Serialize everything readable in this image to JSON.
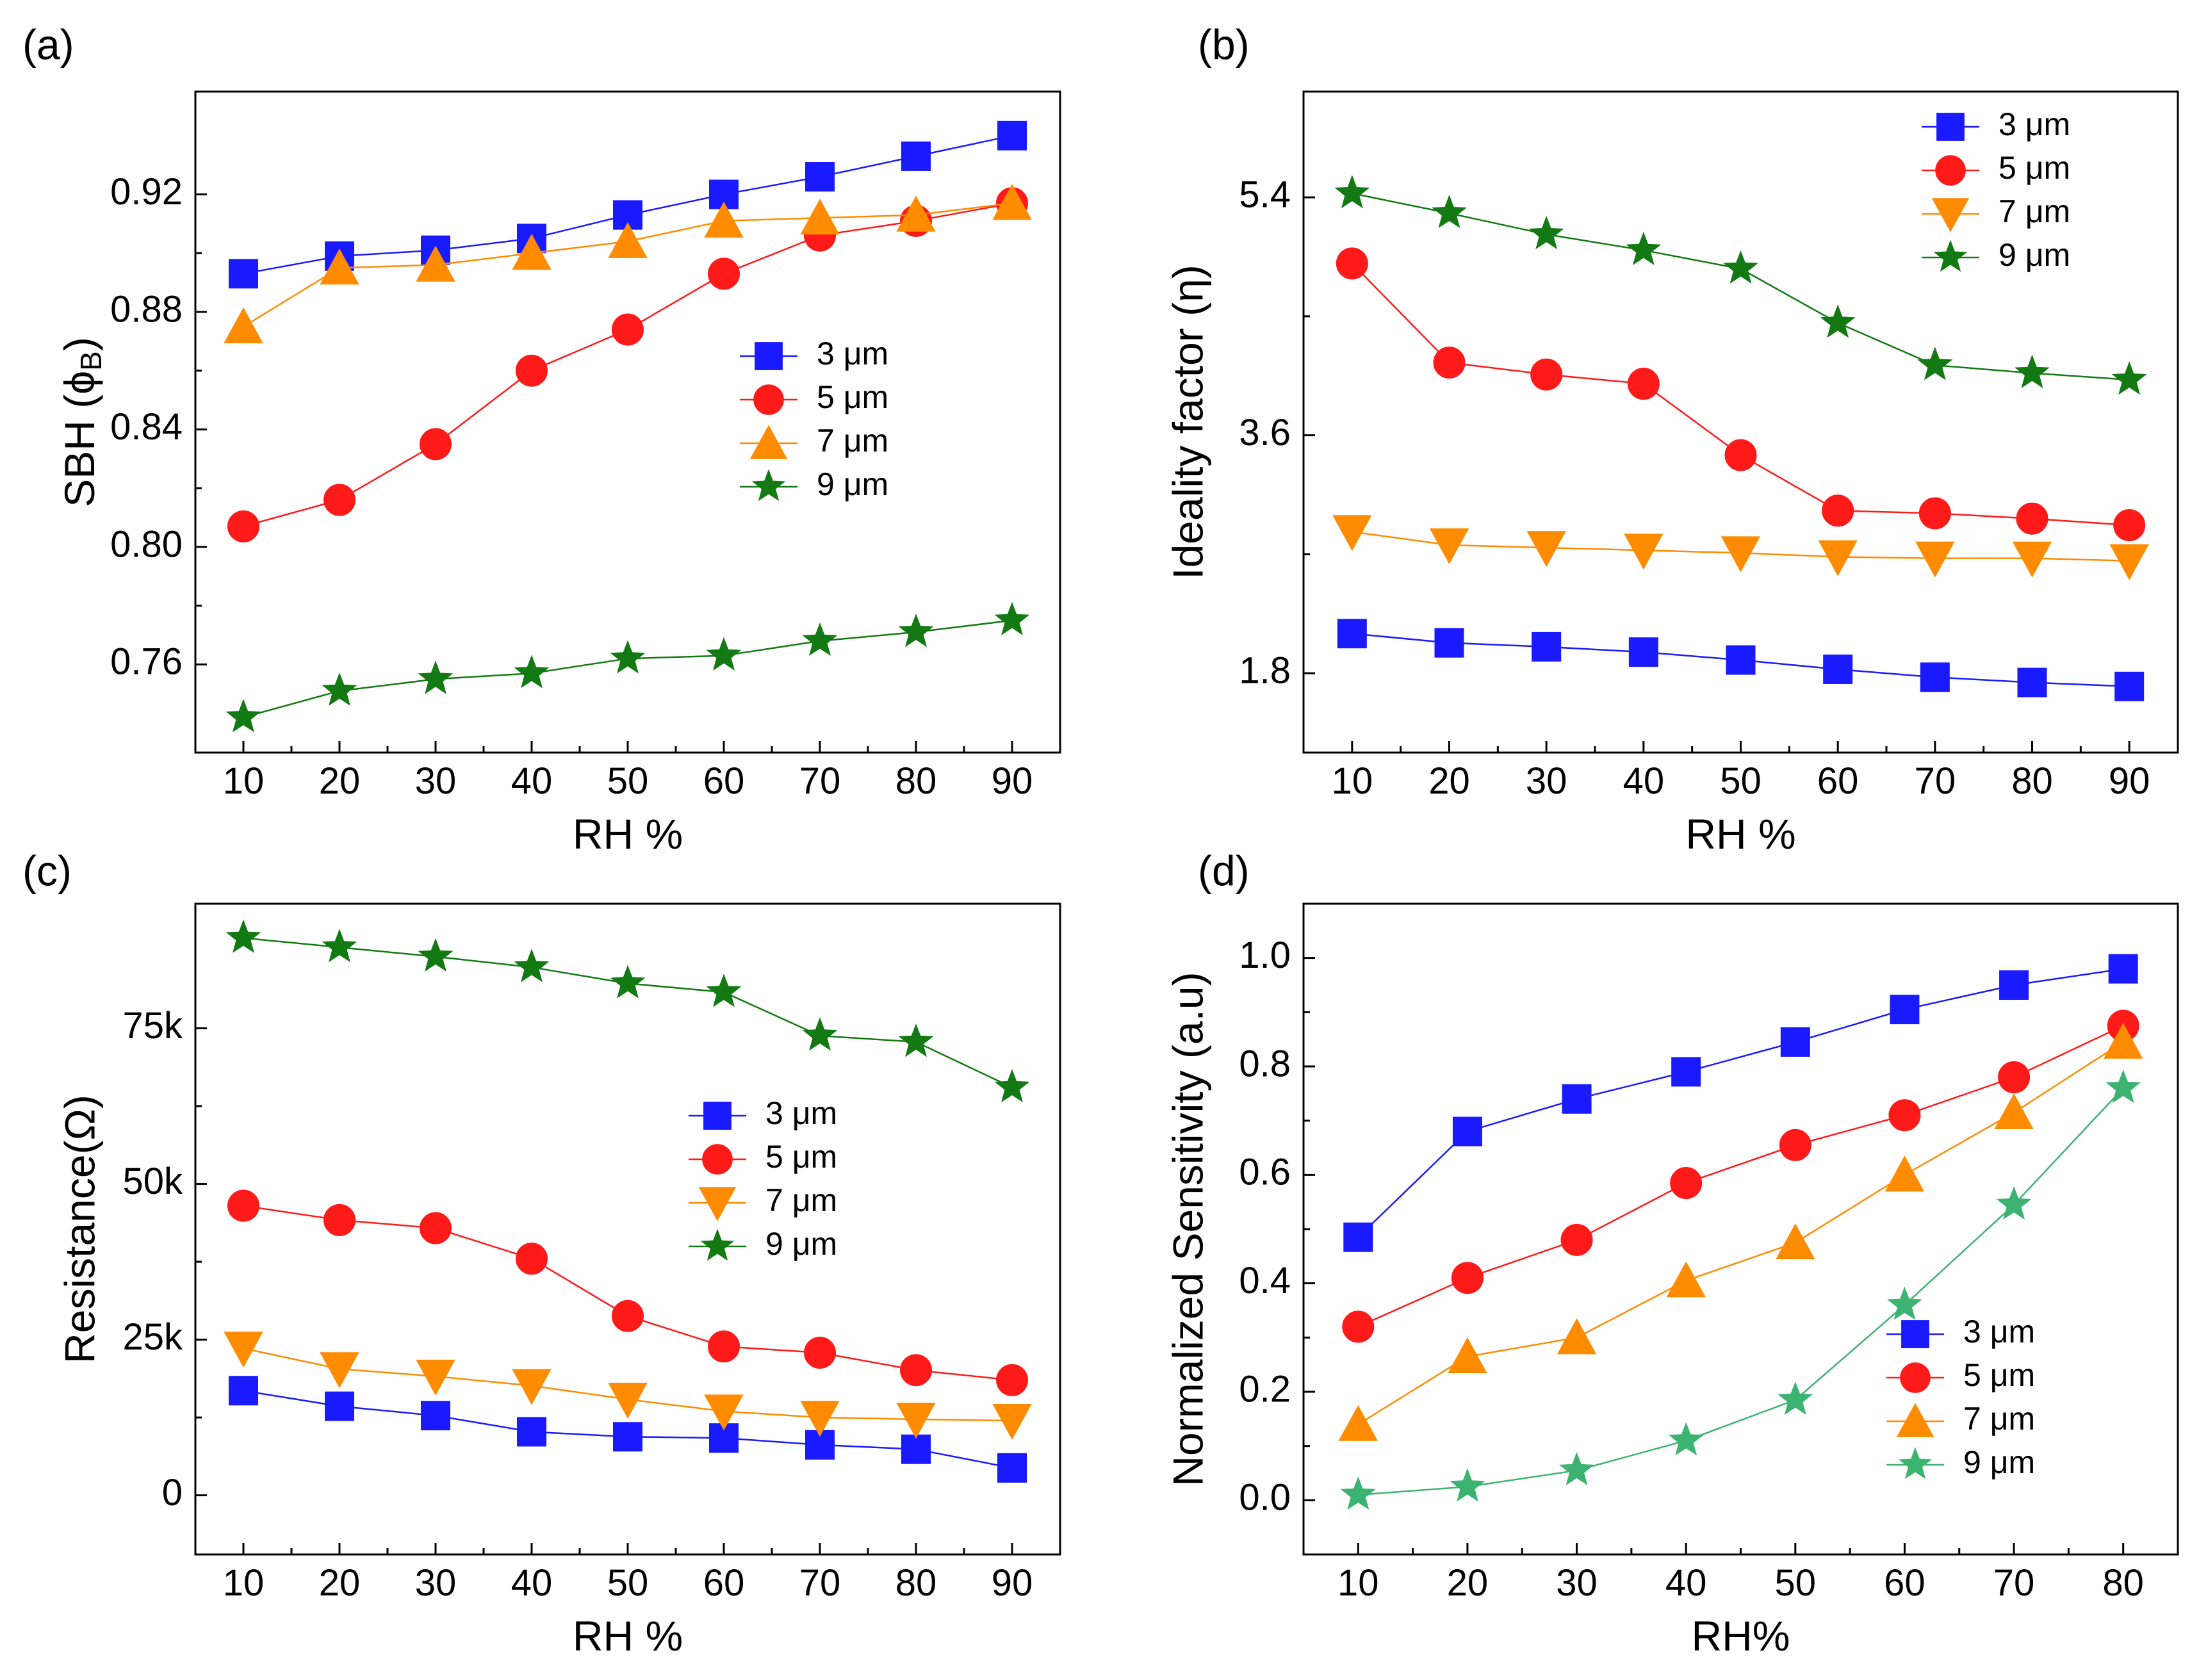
{
  "figure": {
    "legend_unit": "μm",
    "series_colors": {
      "3 μm": "#1a1aff",
      "5 μm": "#ff1a1a",
      "7 μm": "#ff8c00",
      "9 μm": "#137a13",
      "9 μm (d)": "#3cb371"
    }
  },
  "chart_data": [
    {
      "panel_label": "(a)",
      "type": "line",
      "title": "",
      "xlabel": "RH %",
      "ylabel": "SBH (ϕ",
      "ylabel_sub": "B",
      "ylabel_close": ")",
      "x": [
        10,
        20,
        30,
        40,
        50,
        60,
        70,
        80,
        90
      ],
      "xlim": [
        5,
        95
      ],
      "ylim": [
        0.73,
        0.955
      ],
      "xticks": [
        10,
        20,
        30,
        40,
        50,
        60,
        70,
        80,
        90
      ],
      "yticks": [
        0.76,
        0.8,
        0.84,
        0.88,
        0.92
      ],
      "ytick_labels": [
        "0.76",
        "0.80",
        "0.84",
        "0.88",
        "0.92"
      ],
      "legend": "center-right",
      "series": [
        {
          "name": "3 μm",
          "marker": "square",
          "color": "#1a1aff",
          "values": [
            0.893,
            0.899,
            0.901,
            0.905,
            0.913,
            0.92,
            0.926,
            0.933,
            0.94
          ]
        },
        {
          "name": "5 μm",
          "marker": "circle",
          "color": "#ff1a1a",
          "values": [
            0.807,
            0.816,
            0.835,
            0.86,
            0.874,
            0.893,
            0.906,
            0.911,
            0.917
          ]
        },
        {
          "name": "7 μm",
          "marker": "triangle-up",
          "color": "#ff8c00",
          "values": [
            0.875,
            0.895,
            0.896,
            0.9,
            0.904,
            0.911,
            0.912,
            0.913,
            0.917
          ]
        },
        {
          "name": "9 μm",
          "marker": "star",
          "color": "#137a13",
          "values": [
            0.742,
            0.751,
            0.755,
            0.757,
            0.762,
            0.763,
            0.768,
            0.771,
            0.775
          ]
        }
      ]
    },
    {
      "panel_label": "(b)",
      "type": "line",
      "title": "",
      "xlabel": "RH %",
      "ylabel": "Ideality factor (η)",
      "x": [
        10,
        20,
        30,
        40,
        50,
        60,
        70,
        80,
        90
      ],
      "xlim": [
        5,
        95
      ],
      "ylim": [
        1.2,
        6.2
      ],
      "xticks": [
        10,
        20,
        30,
        40,
        50,
        60,
        70,
        80,
        90
      ],
      "yticks": [
        1.8,
        3.6,
        5.4
      ],
      "ytick_labels": [
        "1.8",
        "3.6",
        "5.4"
      ],
      "legend": "top-right",
      "series": [
        {
          "name": "3 μm",
          "marker": "square",
          "color": "#1a1aff",
          "values": [
            2.1,
            2.03,
            2.0,
            1.96,
            1.9,
            1.83,
            1.77,
            1.73,
            1.7
          ]
        },
        {
          "name": "5 μm",
          "marker": "circle",
          "color": "#ff1a1a",
          "values": [
            4.9,
            4.15,
            4.06,
            3.99,
            3.45,
            3.03,
            3.01,
            2.97,
            2.92
          ]
        },
        {
          "name": "7 μm",
          "marker": "triangle-down",
          "color": "#ff8c00",
          "values": [
            2.87,
            2.77,
            2.75,
            2.73,
            2.71,
            2.68,
            2.67,
            2.67,
            2.65
          ]
        },
        {
          "name": "9 μm",
          "marker": "star",
          "color": "#137a13",
          "values": [
            5.43,
            5.28,
            5.12,
            5.0,
            4.86,
            4.45,
            4.13,
            4.07,
            4.02
          ]
        }
      ]
    },
    {
      "panel_label": "(c)",
      "type": "line",
      "title": "",
      "xlabel": "RH %",
      "ylabel": "Resistance(Ω)",
      "x": [
        10,
        20,
        30,
        40,
        50,
        60,
        70,
        80,
        90
      ],
      "xlim": [
        5,
        95
      ],
      "ylim": [
        -9500,
        95000
      ],
      "xticks": [
        10,
        20,
        30,
        40,
        50,
        60,
        70,
        80,
        90
      ],
      "yticks": [
        0,
        25000,
        50000,
        75000
      ],
      "ytick_labels": [
        "0",
        "25k",
        "50k",
        "75k"
      ],
      "legend": "center-right",
      "series": [
        {
          "name": "3 μm",
          "marker": "square",
          "color": "#1a1aff",
          "values": [
            16800,
            14300,
            12800,
            10200,
            9400,
            9200,
            8100,
            7400,
            4400
          ]
        },
        {
          "name": "5 μm",
          "marker": "circle",
          "color": "#ff1a1a",
          "values": [
            46500,
            44200,
            42900,
            38000,
            28800,
            23900,
            22900,
            20100,
            18500
          ]
        },
        {
          "name": "7 μm",
          "marker": "triangle-down",
          "color": "#ff8c00",
          "values": [
            23600,
            20300,
            19100,
            17600,
            15400,
            13500,
            12500,
            12200,
            12000
          ]
        },
        {
          "name": "9 μm",
          "marker": "star",
          "color": "#137a13",
          "values": [
            89500,
            88000,
            86500,
            84800,
            82200,
            80800,
            73800,
            72800,
            65500
          ]
        }
      ]
    },
    {
      "panel_label": "(d)",
      "type": "line",
      "title": "",
      "xlabel": "RH%",
      "ylabel": "Normalized Sensitivity (a.u)",
      "x": [
        10,
        20,
        30,
        40,
        50,
        60,
        70,
        80
      ],
      "xlim": [
        5,
        85
      ],
      "ylim": [
        -0.1,
        1.1
      ],
      "xticks": [
        10,
        20,
        30,
        40,
        50,
        60,
        70,
        80
      ],
      "yticks": [
        0.0,
        0.2,
        0.4,
        0.6,
        0.8,
        1.0
      ],
      "ytick_labels": [
        "0.0",
        "0.2",
        "0.4",
        "0.6",
        "0.8",
        "1.0"
      ],
      "legend": "bottom-right",
      "series": [
        {
          "name": "3 μm",
          "marker": "square",
          "color": "#1a1aff",
          "values": [
            0.485,
            0.68,
            0.74,
            0.79,
            0.845,
            0.905,
            0.95,
            0.98
          ]
        },
        {
          "name": "5 μm",
          "marker": "circle",
          "color": "#ff1a1a",
          "values": [
            0.32,
            0.41,
            0.48,
            0.585,
            0.655,
            0.71,
            0.78,
            0.875
          ]
        },
        {
          "name": "7 μm",
          "marker": "triangle-up",
          "color": "#ff8c00",
          "values": [
            0.14,
            0.265,
            0.3,
            0.405,
            0.475,
            0.6,
            0.715,
            0.845
          ]
        },
        {
          "name": "9 μm",
          "marker": "star",
          "color": "#3cb371",
          "values": [
            0.01,
            0.025,
            0.055,
            0.11,
            0.185,
            0.36,
            0.545,
            0.76
          ]
        }
      ]
    }
  ]
}
